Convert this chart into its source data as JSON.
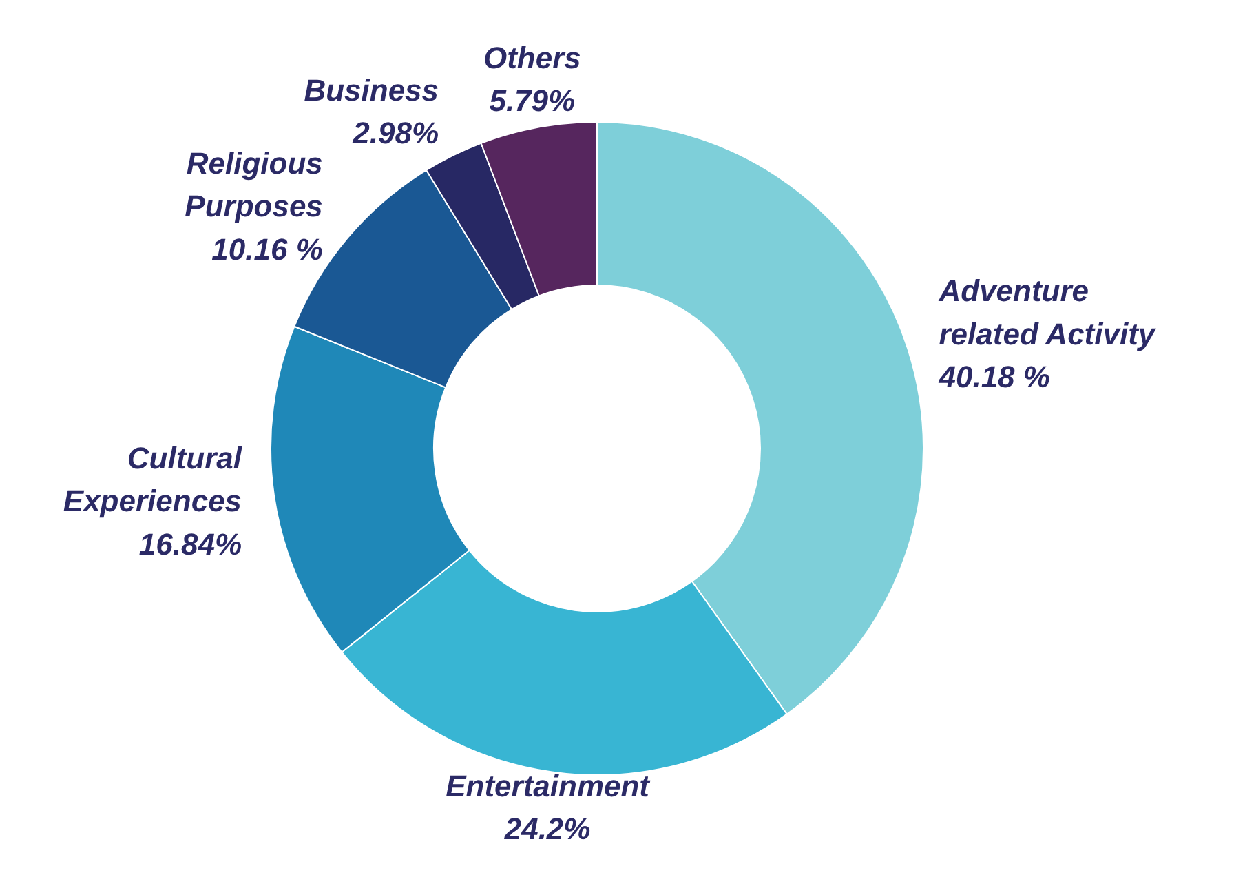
{
  "chart_data": {
    "type": "donut",
    "categories": [
      "Adventure related Activity",
      "Entertainment",
      "Cultural Experiences",
      "Religious Purposes",
      "Business",
      "Others"
    ],
    "values": [
      40.18,
      24.2,
      16.84,
      10.16,
      2.98,
      5.79
    ],
    "value_labels": [
      "40.18 %",
      "24.2%",
      "16.84%",
      "10.16 %",
      "2.98%",
      "5.79%"
    ],
    "colors": [
      "#7ecfd9",
      "#38b5d3",
      "#1f88b8",
      "#1a5894",
      "#272864",
      "#56265e"
    ]
  }
}
